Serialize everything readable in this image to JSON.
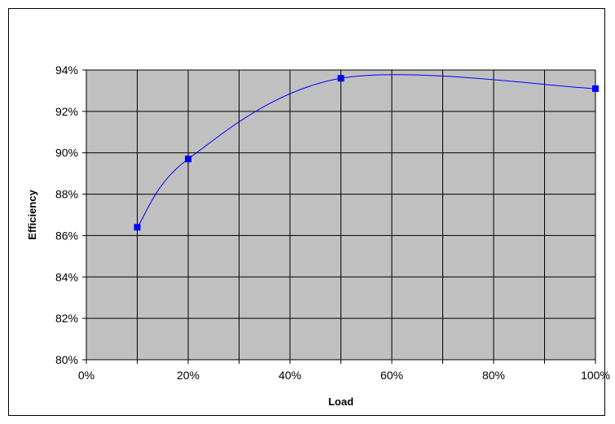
{
  "chart_data": {
    "type": "line",
    "title": "",
    "xlabel": "Load",
    "ylabel": "Efficiency",
    "xlim": [
      0,
      100
    ],
    "ylim": [
      80,
      94
    ],
    "x_ticks": [
      0,
      10,
      20,
      30,
      40,
      50,
      60,
      70,
      80,
      90,
      100
    ],
    "x_tick_labels": [
      {
        "value": 0,
        "label": "0%"
      },
      {
        "value": 20,
        "label": "20%"
      },
      {
        "value": 40,
        "label": "40%"
      },
      {
        "value": 60,
        "label": "60%"
      },
      {
        "value": 80,
        "label": "80%"
      },
      {
        "value": 100,
        "label": "100%"
      }
    ],
    "y_ticks": [
      {
        "value": 80,
        "label": "80%"
      },
      {
        "value": 82,
        "label": "82%"
      },
      {
        "value": 84,
        "label": "84%"
      },
      {
        "value": 86,
        "label": "86%"
      },
      {
        "value": 88,
        "label": "88%"
      },
      {
        "value": 90,
        "label": "90%"
      },
      {
        "value": 92,
        "label": "92%"
      },
      {
        "value": 94,
        "label": "94%"
      }
    ],
    "grid": true,
    "legend": "none",
    "plot_background": "#c0c0c0",
    "series": [
      {
        "color": "#0000ff",
        "marker": "square",
        "smooth": true,
        "x": [
          10,
          20,
          50,
          100
        ],
        "y": [
          86.4,
          89.7,
          93.6,
          93.1
        ]
      }
    ]
  }
}
